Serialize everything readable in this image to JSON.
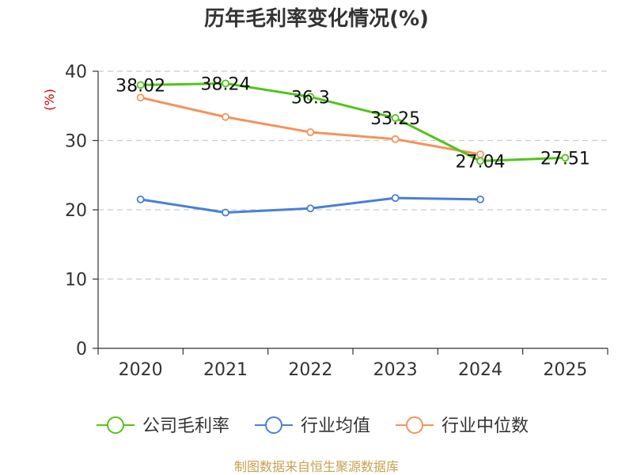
{
  "chart_data": {
    "type": "line",
    "title": "历年毛利率变化情况(%)",
    "ylabel": "(%)",
    "xlabel": "",
    "categories": [
      "2020",
      "2021",
      "2022",
      "2023",
      "2024",
      "2025"
    ],
    "ylim": [
      0,
      40
    ],
    "yticks": [
      "0",
      "10",
      "20",
      "30",
      "40"
    ],
    "grid": true,
    "legend_position": "bottom",
    "series": [
      {
        "name": "公司毛利率",
        "color": "#52c41a",
        "values": [
          38.02,
          38.24,
          36.3,
          33.25,
          27.04,
          27.51
        ],
        "labels": [
          "38.02",
          "38.24",
          "36.3",
          "33.25",
          "27.04",
          "27.51"
        ]
      },
      {
        "name": "行业均值",
        "color": "#4a7fd8",
        "values": [
          21.5,
          19.6,
          20.2,
          21.7,
          21.5,
          null
        ]
      },
      {
        "name": "行业中位数",
        "color": "#f4935a",
        "values": [
          36.2,
          33.4,
          31.2,
          30.2,
          28.0,
          null
        ]
      }
    ]
  },
  "footer": {
    "source": "制图数据来自恒生聚源数据库"
  }
}
